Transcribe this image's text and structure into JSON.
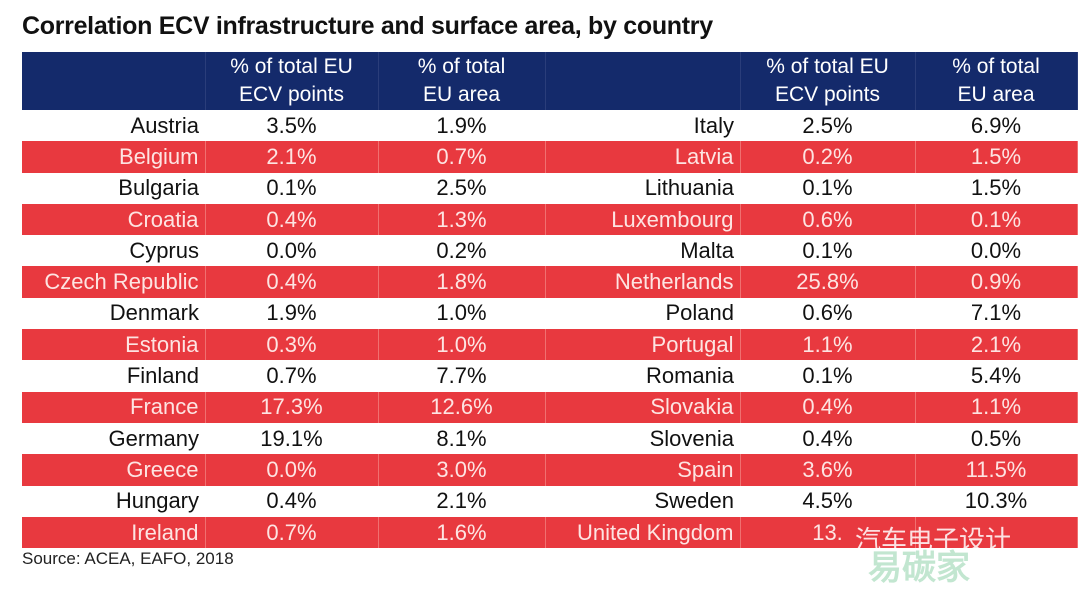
{
  "chart_data": {
    "type": "table",
    "title": "Correlation ECV infrastructure and surface area, by country",
    "columns": [
      "",
      "% of total EU ECV points",
      "% of total EU area",
      "",
      "% of total EU ECV points",
      "% of total EU area"
    ],
    "header_lines": {
      "c1a": "% of total EU",
      "c1b": "ECV points",
      "c2a": "% of total",
      "c2b": "EU area"
    },
    "rows": [
      [
        "Austria",
        "3.5%",
        "1.9%",
        "Italy",
        "2.5%",
        "6.9%"
      ],
      [
        "Belgium",
        "2.1%",
        "0.7%",
        "Latvia",
        "0.2%",
        "1.5%"
      ],
      [
        "Bulgaria",
        "0.1%",
        "2.5%",
        "Lithuania",
        "0.1%",
        "1.5%"
      ],
      [
        "Croatia",
        "0.4%",
        "1.3%",
        "Luxembourg",
        "0.6%",
        "0.1%"
      ],
      [
        "Cyprus",
        "0.0%",
        "0.2%",
        "Malta",
        "0.1%",
        "0.0%"
      ],
      [
        "Czech Republic",
        "0.4%",
        "1.8%",
        "Netherlands",
        "25.8%",
        "0.9%"
      ],
      [
        "Denmark",
        "1.9%",
        "1.0%",
        "Poland",
        "0.6%",
        "7.1%"
      ],
      [
        "Estonia",
        "0.3%",
        "1.0%",
        "Portugal",
        "1.1%",
        "2.1%"
      ],
      [
        "Finland",
        "0.7%",
        "7.7%",
        "Romania",
        "0.1%",
        "5.4%"
      ],
      [
        "France",
        "17.3%",
        "12.6%",
        "Slovakia",
        "0.4%",
        "1.1%"
      ],
      [
        "Germany",
        "19.1%",
        "8.1%",
        "Slovenia",
        "0.4%",
        "0.5%"
      ],
      [
        "Greece",
        "0.0%",
        "3.0%",
        "Spain",
        "3.6%",
        "11.5%"
      ],
      [
        "Hungary",
        "0.4%",
        "2.1%",
        "Sweden",
        "4.5%",
        "10.3%"
      ],
      [
        "Ireland",
        "0.7%",
        "1.6%",
        "United Kingdom",
        "13.",
        ""
      ]
    ],
    "source": "Source: ACEA, EAFO, 2018",
    "colors": {
      "header": "#142a6b",
      "stripe": "#e8393f"
    }
  },
  "watermark": {
    "text1": "汽车电子设计",
    "text2": "易碳家"
  }
}
